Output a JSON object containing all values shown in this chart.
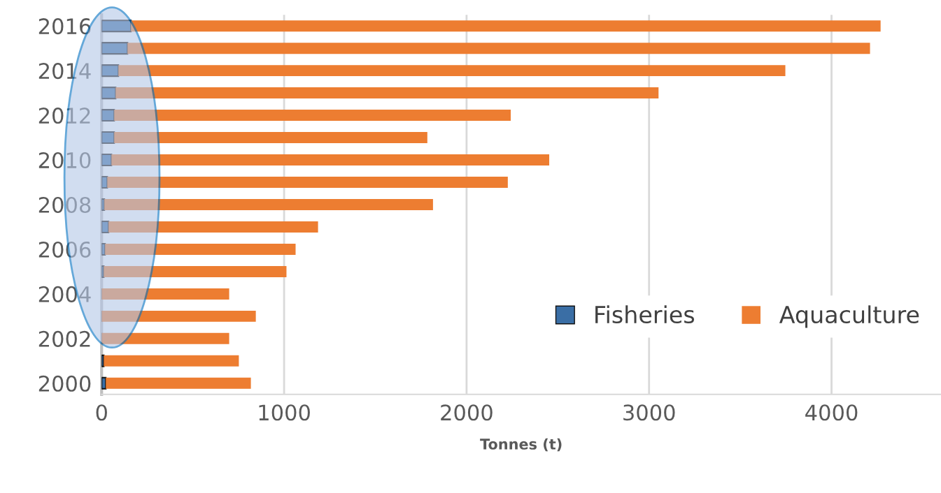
{
  "chart_data": {
    "type": "bar",
    "orientation": "horizontal",
    "stacked": true,
    "xlabel": "Tonnes (t)",
    "categories": [
      "2016",
      null,
      "2014",
      null,
      "2012",
      null,
      "2010",
      null,
      "2008",
      null,
      "2006",
      null,
      "2004",
      null,
      "2002",
      null,
      "2000"
    ],
    "series": [
      {
        "name": "Fisheries",
        "color": "#3a6ea5",
        "values": [
          161,
          142,
          92,
          77,
          69,
          69,
          54,
          31,
          15,
          38,
          19,
          12,
          0,
          0,
          0,
          12,
          23
        ]
      },
      {
        "name": "Aquaculture",
        "color": "#ed7d31",
        "values": [
          4108,
          4069,
          3655,
          2975,
          2173,
          1716,
          2399,
          2195,
          1801,
          1148,
          1044,
          1001,
          699,
          845,
          699,
          740,
          795
        ]
      }
    ],
    "xlim": [
      0,
      4600
    ],
    "xticks": [
      0,
      1000,
      2000,
      3000,
      4000
    ],
    "grid": "x",
    "legend": "lower right"
  }
}
